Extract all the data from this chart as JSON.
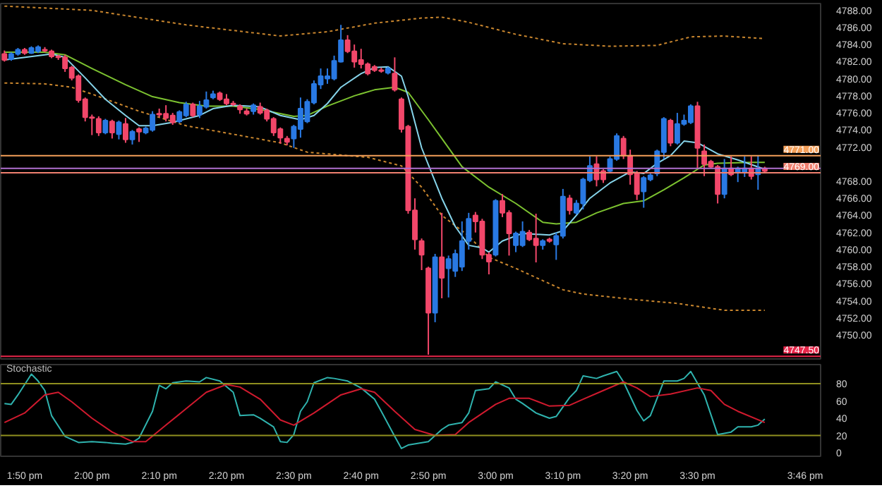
{
  "chart_data": [
    {
      "type": "candlestick",
      "x": [
        13.7833,
        13.8,
        13.8167,
        13.8333,
        13.85,
        13.8667,
        13.8833,
        13.9,
        13.9167,
        13.9333,
        13.95,
        13.9667,
        13.9833,
        14.0,
        14.0167,
        14.0333,
        14.05,
        14.0667,
        14.0833,
        14.1,
        14.1167,
        14.1333,
        14.15,
        14.1667,
        14.1833,
        14.2,
        14.2167,
        14.2333,
        14.25,
        14.2667,
        14.2833,
        14.3,
        14.3167,
        14.3333,
        14.35,
        14.3667,
        14.3833,
        14.4,
        14.4167,
        14.4333,
        14.45,
        14.4667,
        14.4833,
        14.5,
        14.5167,
        14.5333,
        14.55,
        14.5667,
        14.5833,
        14.6,
        14.6167,
        14.6333,
        14.65,
        14.6667,
        14.6833,
        14.7,
        14.7167,
        14.7333,
        14.75,
        14.7667,
        14.7833,
        14.8,
        14.8167,
        14.8333,
        14.85,
        14.8667,
        14.8833,
        14.9,
        14.9167,
        14.9333,
        14.95,
        14.9667,
        14.9833,
        15.0,
        15.0167,
        15.0333,
        15.05,
        15.0667,
        15.0833,
        15.1,
        15.1167,
        15.1333,
        15.15,
        15.1667,
        15.1833,
        15.2,
        15.2167,
        15.2333,
        15.25,
        15.2667,
        15.2833,
        15.3,
        15.3167,
        15.3333,
        15.35,
        15.3667,
        15.3833,
        15.4,
        15.4167,
        15.4333,
        15.45,
        15.4667,
        15.4833,
        15.5,
        15.5167,
        15.5333,
        15.55,
        15.5667,
        15.5833,
        15.6,
        15.6167,
        15.6333,
        15.65,
        15.6667
      ],
      "ohlc": [
        [
          4782.9,
          4783.3,
          4782.0,
          4782.2
        ],
        [
          4782.3,
          4783.1,
          4782.1,
          4782.9
        ],
        [
          4782.9,
          4783.6,
          4782.7,
          4783.4
        ],
        [
          4783.4,
          4783.6,
          4782.8,
          4783.0
        ],
        [
          4783.0,
          4783.8,
          4782.9,
          4783.6
        ],
        [
          4783.2,
          4783.9,
          4783.0,
          4783.7
        ],
        [
          4783.4,
          4783.7,
          4783.1,
          4783.3
        ],
        [
          4783.2,
          4783.4,
          4782.4,
          4782.6
        ],
        [
          4782.6,
          4782.8,
          4782.2,
          4782.5
        ],
        [
          4782.5,
          4782.8,
          4780.8,
          4781.2
        ],
        [
          4781.3,
          4781.5,
          4779.8,
          4780.1
        ],
        [
          4780.3,
          4780.5,
          4777.2,
          4777.5
        ],
        [
          4777.6,
          4777.8,
          4775.0,
          4775.5
        ],
        [
          4775.5,
          4775.8,
          4773.4,
          4775.4
        ],
        [
          4775.3,
          4775.6,
          4773.3,
          4773.7
        ],
        [
          4773.7,
          4775.3,
          4773.5,
          4775.1
        ],
        [
          4775.0,
          4775.2,
          4773.0,
          4773.7
        ],
        [
          4773.5,
          4775.1,
          4772.9,
          4774.9
        ],
        [
          4774.7,
          4775.4,
          4772.5,
          4772.9
        ],
        [
          4772.9,
          4774.0,
          4772.3,
          4773.8
        ],
        [
          4774.1,
          4774.3,
          4772.6,
          4773.8
        ],
        [
          4773.7,
          4774.4,
          4773.5,
          4774.2
        ],
        [
          4774.0,
          4776.2,
          4773.8,
          4775.8
        ],
        [
          4775.9,
          4776.5,
          4775.5,
          4775.8
        ],
        [
          4775.9,
          4776.9,
          4775.0,
          4775.4
        ],
        [
          4775.7,
          4776.0,
          4774.6,
          4774.9
        ],
        [
          4775.0,
          4776.3,
          4774.8,
          4776.1
        ],
        [
          4775.7,
          4777.3,
          4775.5,
          4777.0
        ],
        [
          4777.0,
          4777.2,
          4775.5,
          4775.7
        ],
        [
          4775.8,
          4777.4,
          4775.4,
          4776.8
        ],
        [
          4776.7,
          4778.5,
          4776.5,
          4777.5
        ],
        [
          4777.8,
          4778.6,
          4777.6,
          4778.2
        ],
        [
          4778.3,
          4778.5,
          4777.4,
          4777.6
        ],
        [
          4777.6,
          4778.2,
          4776.9,
          4777.1
        ],
        [
          4777.1,
          4777.4,
          4776.8,
          4777.0
        ],
        [
          4776.8,
          4777.0,
          4775.9,
          4776.4
        ],
        [
          4776.2,
          4776.5,
          4775.7,
          4775.9
        ],
        [
          4776.2,
          4777.1,
          4775.8,
          4776.9
        ],
        [
          4776.7,
          4777.2,
          4775.8,
          4776.0
        ],
        [
          4776.3,
          4776.5,
          4775.0,
          4775.3
        ],
        [
          4775.3,
          4775.5,
          4773.3,
          4773.7
        ],
        [
          4774.1,
          4774.3,
          4772.4,
          4773.1
        ],
        [
          4773.0,
          4773.3,
          4772.2,
          4772.6
        ],
        [
          4773.0,
          4774.6,
          4771.9,
          4774.4
        ],
        [
          4774.1,
          4777.8,
          4773.1,
          4776.5
        ],
        [
          4775.0,
          4777.6,
          4774.8,
          4777.3
        ],
        [
          4777.2,
          4779.8,
          4777.0,
          4779.4
        ],
        [
          4779.3,
          4781.2,
          4778.8,
          4780.3
        ],
        [
          4780.0,
          4781.2,
          4779.4,
          4780.3
        ],
        [
          4780.0,
          4782.7,
          4779.8,
          4782.1
        ],
        [
          4782.0,
          4786.3,
          4781.9,
          4784.5
        ],
        [
          4784.5,
          4785.1,
          4783.0,
          4783.2
        ],
        [
          4783.2,
          4784.0,
          4781.3,
          4782.0
        ],
        [
          4782.2,
          4783.5,
          4781.2,
          4781.7
        ],
        [
          4781.7,
          4781.9,
          4780.4,
          4780.6
        ],
        [
          4781.4,
          4781.6,
          4780.8,
          4781.0
        ],
        [
          4781.0,
          4781.3,
          4780.7,
          4780.9
        ],
        [
          4780.7,
          4781.4,
          4780.5,
          4781.2
        ],
        [
          4780.6,
          4782.5,
          4778.5,
          4778.7
        ],
        [
          4777.6,
          4777.8,
          4773.7,
          4774.1
        ],
        [
          4774.4,
          4774.6,
          4764.2,
          4764.6
        ],
        [
          4764.6,
          4766.0,
          4760.0,
          4761.2
        ],
        [
          4761.0,
          4761.3,
          4757.6,
          4759.4
        ],
        [
          4757.8,
          4758.0,
          4747.7,
          4752.6
        ],
        [
          4752.6,
          4759.5,
          4751.5,
          4759.1
        ],
        [
          4759.1,
          4764.3,
          4754.3,
          4756.7
        ],
        [
          4757.8,
          4759.3,
          4754.4,
          4758.9
        ],
        [
          4757.5,
          4760.0,
          4756.8,
          4759.5
        ],
        [
          4758.0,
          4763.3,
          4757.5,
          4761.0
        ],
        [
          4761.0,
          4764.3,
          4760.0,
          4763.6
        ],
        [
          4764.0,
          4764.4,
          4762.0,
          4763.3
        ],
        [
          4763.3,
          4763.6,
          4758.9,
          4759.4
        ],
        [
          4759.4,
          4759.7,
          4757.1,
          4758.6
        ],
        [
          4759.4,
          4765.9,
          4759.2,
          4765.7
        ],
        [
          4765.7,
          4766.5,
          4763.8,
          4764.3
        ],
        [
          4764.3,
          4764.6,
          4759.3,
          4761.9
        ],
        [
          4760.5,
          4762.1,
          4759.7,
          4761.9
        ],
        [
          4760.5,
          4763.3,
          4760.3,
          4762.1
        ],
        [
          4762.0,
          4762.3,
          4761.0,
          4761.2
        ],
        [
          4761.3,
          4764.2,
          4758.5,
          4760.5
        ],
        [
          4760.5,
          4761.2,
          4760.0,
          4761.0
        ],
        [
          4761.2,
          4761.4,
          4760.8,
          4761.0
        ],
        [
          4760.6,
          4762.0,
          4758.8,
          4761.6
        ],
        [
          4761.6,
          4767.1,
          4761.3,
          4766.2
        ],
        [
          4766.0,
          4766.4,
          4764.1,
          4764.6
        ],
        [
          4764.3,
          4765.8,
          4764.1,
          4765.4
        ],
        [
          4765.4,
          4768.4,
          4764.7,
          4768.2
        ],
        [
          4768.1,
          4770.9,
          4767.9,
          4769.8
        ],
        [
          4770.0,
          4770.9,
          4767.4,
          4768.2
        ],
        [
          4769.2,
          4769.4,
          4767.8,
          4768.2
        ],
        [
          4769.2,
          4770.9,
          4769.0,
          4770.6
        ],
        [
          4770.6,
          4773.6,
          4770.4,
          4773.3
        ],
        [
          4773.0,
          4773.3,
          4770.6,
          4771.0
        ],
        [
          4771.0,
          4771.7,
          4767.6,
          4768.8
        ],
        [
          4769.0,
          4769.2,
          4765.8,
          4766.5
        ],
        [
          4766.8,
          4768.6,
          4764.9,
          4768.4
        ],
        [
          4768.2,
          4768.9,
          4768.0,
          4768.7
        ],
        [
          4768.9,
          4771.7,
          4768.6,
          4771.5
        ],
        [
          4771.4,
          4775.5,
          4770.6,
          4775.3
        ],
        [
          4775.1,
          4775.3,
          4772.1,
          4772.5
        ],
        [
          4772.5,
          4776.0,
          4772.3,
          4774.7
        ],
        [
          4774.7,
          4775.8,
          4774.5,
          4775.1
        ],
        [
          4774.9,
          4777.0,
          4774.7,
          4776.8
        ],
        [
          4776.8,
          4777.3,
          4769.5,
          4771.9
        ],
        [
          4771.5,
          4772.3,
          4768.6,
          4770.0
        ],
        [
          4770.3,
          4770.5,
          4769.5,
          4769.7
        ],
        [
          4769.7,
          4769.9,
          4765.4,
          4766.5
        ],
        [
          4766.5,
          4770.6,
          4766.0,
          4769.5
        ],
        [
          4769.5,
          4770.9,
          4768.6,
          4768.8
        ],
        [
          4769.0,
          4769.7,
          4767.9,
          4769.5
        ],
        [
          4769.1,
          4770.9,
          4768.5,
          4769.5
        ],
        [
          4769.5,
          4770.9,
          4768.2,
          4768.6
        ],
        [
          4768.8,
          4771.0,
          4767.0,
          4769.5
        ],
        [
          4769.5,
          4769.7,
          4769.0,
          4769.2
        ]
      ],
      "colors": [
        "#f2476a",
        "#2979e3",
        "#2979e3",
        "#f2476a",
        "#2979e3",
        "#2979e3",
        "#f2476a",
        "#f2476a",
        "#f2476a",
        "#f2476a",
        "#f2476a",
        "#f2476a",
        "#f2476a",
        "#f2476a",
        "#f2476a",
        "#2979e3",
        "#f2476a",
        "#2979e3",
        "#f2476a",
        "#2979e3",
        "#f2476a",
        "#2979e3",
        "#2979e3",
        "#f2476a",
        "#f2476a",
        "#f2476a",
        "#2979e3",
        "#2979e3",
        "#f2476a",
        "#2979e3",
        "#2979e3",
        "#2979e3",
        "#f2476a",
        "#f2476a",
        "#f2476a",
        "#f2476a",
        "#f2476a",
        "#2979e3",
        "#f2476a",
        "#f2476a",
        "#f2476a",
        "#f2476a",
        "#f2476a",
        "#2979e3",
        "#2979e3",
        "#2979e3",
        "#2979e3",
        "#2979e3",
        "#2979e3",
        "#2979e3",
        "#2979e3",
        "#f2476a",
        "#f2476a",
        "#f2476a",
        "#f2476a",
        "#f2476a",
        "#f2476a",
        "#2979e3",
        "#f2476a",
        "#f2476a",
        "#f2476a",
        "#f2476a",
        "#f2476a",
        "#f2476a",
        "#2979e3",
        "#f2476a",
        "#2979e3",
        "#2979e3",
        "#2979e3",
        "#2979e3",
        "#f2476a",
        "#f2476a",
        "#f2476a",
        "#2979e3",
        "#f2476a",
        "#f2476a",
        "#2979e3",
        "#2979e3",
        "#f2476a",
        "#f2476a",
        "#2979e3",
        "#f2476a",
        "#2979e3",
        "#2979e3",
        "#f2476a",
        "#2979e3",
        "#2979e3",
        "#2979e3",
        "#f2476a",
        "#f2476a",
        "#2979e3",
        "#2979e3",
        "#f2476a",
        "#f2476a",
        "#f2476a",
        "#2979e3",
        "#2979e3",
        "#2979e3",
        "#2979e3",
        "#f2476a",
        "#2979e3",
        "#2979e3",
        "#2979e3",
        "#f2476a",
        "#f2476a",
        "#f2476a",
        "#f2476a",
        "#2979e3",
        "#f2476a",
        "#2979e3",
        "#2979e3",
        "#f2476a",
        "#2979e3",
        "#f2476a"
      ],
      "series": [
        {
          "type": "line",
          "color": "#c9862e",
          "line_style": "dotted",
          "x": [
            13.7833,
            14.0,
            14.2333,
            14.4667,
            14.5833,
            14.7,
            14.8167,
            14.8667,
            14.9333,
            15.05,
            15.1667,
            15.2833,
            15.4,
            15.4833,
            15.5667,
            15.6667
          ],
          "values": [
            4788.5,
            4788.0,
            4786.3,
            4785.0,
            4785.5,
            4786.5,
            4787.1,
            4787.2,
            4786.6,
            4785.2,
            4784.1,
            4783.8,
            4783.9,
            4784.9,
            4785.0,
            4784.7
          ]
        },
        {
          "type": "line",
          "color": "#c9862e",
          "line_style": "dotted",
          "x": [
            13.7833,
            13.8833,
            13.95,
            14.0,
            14.1167,
            14.2333,
            14.35,
            14.4667,
            14.5333,
            14.6833,
            14.7667,
            14.8167,
            14.8667,
            14.9333,
            14.9833,
            15.05,
            15.1667,
            15.2167,
            15.3333,
            15.45,
            15.5667,
            15.6667
          ],
          "values": [
            4779.5,
            4779.4,
            4779.0,
            4778.2,
            4776.2,
            4774.5,
            4773.5,
            4772.5,
            4771.4,
            4770.8,
            4769.8,
            4767.3,
            4764.0,
            4761.6,
            4759.1,
            4757.8,
            4755.3,
            4754.8,
            4754.2,
            4753.7,
            4752.9,
            4752.9
          ]
        },
        {
          "type": "line",
          "color": "#7cc230",
          "line_style": "solid",
          "x": [
            13.7833,
            13.8833,
            13.9333,
            14.0,
            14.0833,
            14.15,
            14.2167,
            14.2833,
            14.35,
            14.4167,
            14.5,
            14.5333,
            14.5833,
            14.65,
            14.7,
            14.75,
            14.7833,
            14.8333,
            14.8667,
            14.9167,
            14.9833,
            15.05,
            15.1167,
            15.15,
            15.2,
            15.25,
            15.3167,
            15.3667,
            15.4167,
            15.4667,
            15.5167,
            15.55,
            15.6333,
            15.6667
          ],
          "values": [
            4783.1,
            4783.1,
            4782.8,
            4781.2,
            4779.3,
            4777.9,
            4777.2,
            4776.8,
            4776.8,
            4776.4,
            4775.6,
            4775.7,
            4776.8,
            4778.0,
            4778.7,
            4779.0,
            4778.4,
            4775.2,
            4773.0,
            4769.7,
            4767.3,
            4765.4,
            4763.2,
            4763.0,
            4763.2,
            4764.3,
            4765.4,
            4765.7,
            4767.0,
            4768.4,
            4769.9,
            4770.1,
            4770.2,
            4770.2
          ]
        },
        {
          "type": "line",
          "color": "#86d4ea",
          "line_style": "solid",
          "x": [
            13.7833,
            13.9,
            13.9333,
            13.9833,
            14.0333,
            14.0833,
            14.1167,
            14.15,
            14.2,
            14.2667,
            14.3,
            14.35,
            14.4167,
            14.4667,
            14.5167,
            14.55,
            14.5833,
            14.6167,
            14.6667,
            14.7,
            14.7333,
            14.7667,
            14.7833,
            14.8167,
            14.8667,
            14.9,
            14.9333,
            14.9667,
            14.9833,
            15.0167,
            15.0667,
            15.1333,
            15.1667,
            15.2,
            15.2333,
            15.2833,
            15.3333,
            15.3667,
            15.4,
            15.4333,
            15.4667,
            15.5,
            15.55,
            15.6,
            15.6667
          ],
          "values": [
            4782.2,
            4782.9,
            4782.5,
            4780.1,
            4777.6,
            4775.7,
            4774.5,
            4774.5,
            4774.9,
            4775.7,
            4776.5,
            4776.9,
            4776.7,
            4775.7,
            4775.2,
            4775.7,
            4777.1,
            4779.0,
            4780.6,
            4781.3,
            4781.4,
            4780.3,
            4777.9,
            4771.9,
            4766.0,
            4762.7,
            4760.5,
            4760.2,
            4759.7,
            4761.0,
            4761.9,
            4761.7,
            4762.2,
            4764.0,
            4766.0,
            4767.8,
            4769.1,
            4768.9,
            4770.1,
            4771.0,
            4772.7,
            4772.5,
            4771.2,
            4770.5,
            4769.4
          ]
        }
      ],
      "xlim": [
        13.774,
        15.805
      ],
      "ylim": [
        4747.2,
        4788.8
      ],
      "yticks": [
        {
          "value": 4750,
          "label": "4750.00"
        },
        {
          "value": 4752,
          "label": "4752.00"
        },
        {
          "value": 4754,
          "label": "4754.00"
        },
        {
          "value": 4756,
          "label": "4756.00"
        },
        {
          "value": 4758,
          "label": "4758.00"
        },
        {
          "value": 4760,
          "label": "4760.00"
        },
        {
          "value": 4762,
          "label": "4762.00"
        },
        {
          "value": 4764,
          "label": "4764.00"
        },
        {
          "value": 4766,
          "label": "4766.00"
        },
        {
          "value": 4768,
          "label": "4768.00"
        },
        {
          "value": 4772,
          "label": "4772.00"
        },
        {
          "value": 4774,
          "label": "4774.00"
        },
        {
          "value": 4776,
          "label": "4776.00"
        },
        {
          "value": 4778,
          "label": "4778.00"
        },
        {
          "value": 4780,
          "label": "4780.00"
        },
        {
          "value": 4782,
          "label": "4782.00"
        },
        {
          "value": 4784,
          "label": "4784.00"
        },
        {
          "value": 4786,
          "label": "4786.00"
        },
        {
          "value": 4788,
          "label": "4788.00"
        }
      ],
      "tick_labels": "y",
      "ref_lines": [
        {
          "axis": "y",
          "value": 4771.0,
          "label": "4771.00",
          "color": "#f5a05a"
        },
        {
          "axis": "y",
          "value": 4769.5,
          "color": "#b070d0"
        },
        {
          "axis": "y",
          "value": 4769.0,
          "label": "4769.00",
          "color": "#f08070"
        },
        {
          "axis": "y",
          "value": 4747.5,
          "label": "4747.50",
          "color": "#e8264a"
        }
      ]
    },
    {
      "type": "line",
      "title": "Stochastic",
      "series": [
        {
          "type": "line",
          "color": "#2fb3ae",
          "x": [
            13.7833,
            13.8,
            13.8167,
            13.85,
            13.8667,
            13.8833,
            13.9,
            13.9333,
            13.9667,
            14.0,
            14.0333,
            14.05,
            14.0833,
            14.1,
            14.1167,
            14.15,
            14.1667,
            14.1833,
            14.2,
            14.2333,
            14.2667,
            14.2833,
            14.3167,
            14.35,
            14.3667,
            14.4,
            14.4167,
            14.45,
            14.4667,
            14.4833,
            14.5,
            14.5167,
            14.5333,
            14.55,
            14.5833,
            14.6,
            14.6333,
            14.6667,
            14.7,
            14.7167,
            14.75,
            14.7667,
            14.7833,
            14.8333,
            14.8667,
            14.8833,
            14.9167,
            14.9333,
            14.95,
            14.9833,
            15.0,
            15.0333,
            15.05,
            15.0667,
            15.1,
            15.1333,
            15.15,
            15.1833,
            15.2,
            15.2167,
            15.25,
            15.2667,
            15.3,
            15.3167,
            15.35,
            15.3667,
            15.3833,
            15.4167,
            15.45,
            15.4667,
            15.4833,
            15.5167,
            15.55,
            15.5833,
            15.6,
            15.6333,
            15.65,
            15.6667
          ],
          "values": [
            57,
            56,
            67,
            91,
            83,
            72,
            43,
            19,
            12,
            13,
            12,
            11,
            10,
            12,
            17,
            48,
            78,
            74,
            81,
            83,
            82,
            87,
            83,
            70,
            43,
            44,
            40,
            30,
            13,
            12,
            21,
            48,
            59,
            81,
            87,
            86,
            83,
            75,
            62,
            48,
            19,
            5,
            9,
            13,
            27,
            32,
            35,
            46,
            72,
            74,
            82,
            75,
            62,
            57,
            46,
            40,
            42,
            64,
            72,
            89,
            86,
            89,
            94,
            82,
            49,
            37,
            43,
            83,
            83,
            86,
            94,
            67,
            21,
            24,
            30,
            30,
            32,
            39
          ]
        },
        {
          "type": "line",
          "color": "#d01a2e",
          "x": [
            13.7833,
            13.8333,
            13.8833,
            13.9167,
            13.95,
            14.0,
            14.05,
            14.1,
            14.1333,
            14.1833,
            14.2333,
            14.2833,
            14.3333,
            14.3667,
            14.4167,
            14.4667,
            14.5,
            14.55,
            14.6167,
            14.6667,
            14.7,
            14.75,
            14.8,
            14.85,
            14.9,
            14.9333,
            15.0,
            15.0333,
            15.0833,
            15.1333,
            15.1833,
            15.2167,
            15.2667,
            15.3167,
            15.35,
            15.3833,
            15.4333,
            15.5,
            15.5333,
            15.5667,
            15.6,
            15.6667
          ],
          "values": [
            35,
            46,
            67,
            70,
            59,
            40,
            24,
            13,
            13,
            32,
            51,
            70,
            79,
            76,
            62,
            38,
            32,
            46,
            67,
            74,
            70,
            48,
            27,
            20,
            21,
            35,
            56,
            63,
            63,
            54,
            55,
            62,
            72,
            82,
            75,
            65,
            68,
            75,
            72,
            56,
            48,
            35
          ]
        }
      ],
      "xlim": [
        13.774,
        15.805
      ],
      "xticks": [
        {
          "value": 13.8333,
          "label": "1:50 pm"
        },
        {
          "value": 14.0,
          "label": "2:00 pm"
        },
        {
          "value": 14.1667,
          "label": "2:10 pm"
        },
        {
          "value": 14.3333,
          "label": "2:20 pm"
        },
        {
          "value": 14.5,
          "label": "2:30 pm"
        },
        {
          "value": 14.6667,
          "label": "2:40 pm"
        },
        {
          "value": 14.8333,
          "label": "2:50 pm"
        },
        {
          "value": 15.0,
          "label": "3:00 pm"
        },
        {
          "value": 15.1667,
          "label": "3:10 pm"
        },
        {
          "value": 15.3333,
          "label": "3:20 pm"
        },
        {
          "value": 15.5,
          "label": "3:30 pm"
        },
        {
          "value": 15.7667,
          "label": "3:46 pm"
        }
      ],
      "ylim": [
        -4,
        102
      ],
      "yticks": [
        0,
        20,
        40,
        60,
        80
      ],
      "ref_lines": [
        {
          "axis": "y",
          "value": 20,
          "color": "#8f8f1f"
        },
        {
          "axis": "y",
          "value": 80,
          "color": "#8f8f1f"
        }
      ]
    }
  ]
}
